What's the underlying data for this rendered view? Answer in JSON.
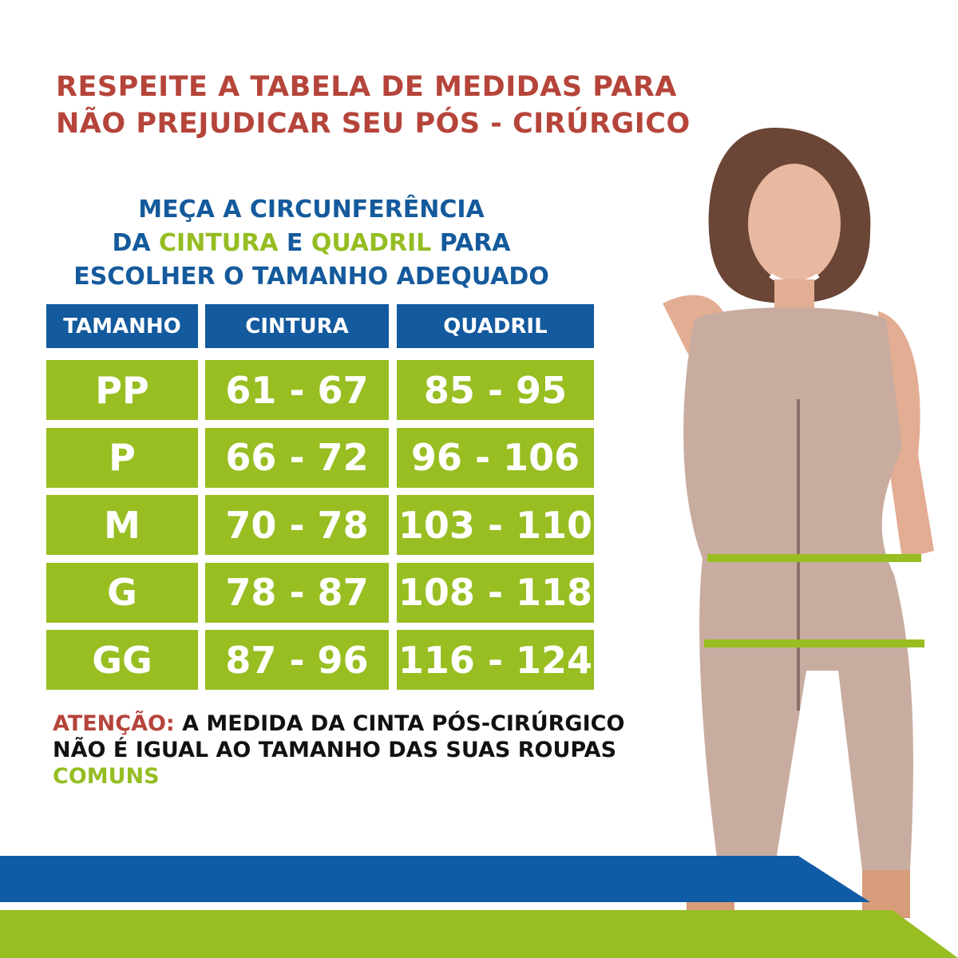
{
  "title": {
    "line1": "RESPEITE A TABELA DE MEDIDAS PARA",
    "line2": "NÃO PREJUDICAR SEU PÓS - CIRÚRGICO"
  },
  "subtitle": {
    "line1": "MEÇA A CIRCUNFERÊNCIA",
    "line2_a": "DA ",
    "line2_b": "CINTURA",
    "line2_c": " E ",
    "line2_d": "QUADRIL",
    "line2_e": " PARA",
    "line3": "ESCOLHER O TAMANHO ADEQUADO"
  },
  "table": {
    "headers": [
      "TAMANHO",
      "CINTURA",
      "QUADRIL"
    ],
    "rows": [
      [
        "PP",
        "61 - 67",
        "85 - 95"
      ],
      [
        "P",
        "66 - 72",
        "96 - 106"
      ],
      [
        "M",
        "70 - 78",
        "103 - 110"
      ],
      [
        "G",
        "78 - 87",
        "108 - 118"
      ],
      [
        "GG",
        "87 - 96",
        "116 - 124"
      ]
    ]
  },
  "note": {
    "label": "ATENÇÃO:",
    "text1": " A MEDIDA DA CINTA PÓS-CIRÚRGICO",
    "text2": "NÃO É IGUAL AO TAMANHO DAS SUAS ROUPAS",
    "text3": "COMUNS"
  },
  "colors": {
    "red": "#b5443a",
    "blue": "#135a9e",
    "green": "#98be22"
  },
  "image": "model-wearing-post-surgical-body-shaper"
}
